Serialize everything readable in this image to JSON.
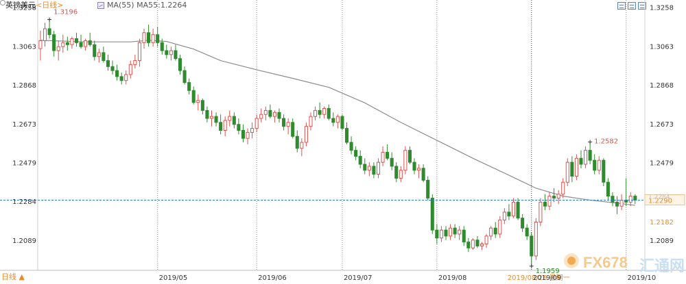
{
  "header": {
    "symbol": "英镑美元",
    "period": "<日线>",
    "ma_label": "MA(55)",
    "ma_value": "MA55:1.2264"
  },
  "period_tab": "日线 ▲",
  "watermark": {
    "fx": "FX678",
    "cn": "汇通网"
  },
  "colors": {
    "up": "#d9544f",
    "down": "#2e8b2e",
    "ma": "#8c8c8c",
    "current": "#2a7fd4",
    "date_hl": "#e98b2c"
  },
  "chart_data": {
    "type": "candlestick",
    "instrument": "英镑美元",
    "period": "日线",
    "y_ticks": [
      1.3258,
      1.3063,
      1.2868,
      1.2673,
      1.2479,
      1.2284,
      1.2089
    ],
    "ylim": [
      1.1938,
      1.3294
    ],
    "x_labels": [
      "2019/05",
      "2019/06",
      "2019/07",
      "2019/08",
      "2019/09",
      "2019/10"
    ],
    "x_label_candle_index": [
      26,
      48,
      67,
      88,
      109,
      130
    ],
    "annotations": {
      "high": "1.3196",
      "low": "1.1959",
      "recent_high": "1.2582",
      "left_marker": "1.2182"
    },
    "current_price": 1.229,
    "current_price_label": "1.2290",
    "right_price_hidden": "1.2284",
    "crosshair_date_label": "2019/08/26 星期一",
    "candles": [
      [
        1.305,
        1.314,
        1.299,
        1.309
      ],
      [
        1.309,
        1.318,
        1.306,
        1.315
      ],
      [
        1.315,
        1.3196,
        1.31,
        1.312
      ],
      [
        1.312,
        1.314,
        1.301,
        1.304
      ],
      [
        1.304,
        1.309,
        1.299,
        1.306
      ],
      [
        1.306,
        1.312,
        1.303,
        1.308
      ],
      [
        1.308,
        1.311,
        1.304,
        1.307
      ],
      [
        1.307,
        1.311,
        1.305,
        1.31
      ],
      [
        1.31,
        1.313,
        1.306,
        1.308
      ],
      [
        1.308,
        1.312,
        1.305,
        1.306
      ],
      [
        1.306,
        1.31,
        1.304,
        1.309
      ],
      [
        1.309,
        1.313,
        1.306,
        1.307
      ],
      [
        1.307,
        1.309,
        1.299,
        1.301
      ],
      [
        1.301,
        1.305,
        1.298,
        1.303
      ],
      [
        1.303,
        1.306,
        1.298,
        1.299
      ],
      [
        1.299,
        1.302,
        1.294,
        1.296
      ],
      [
        1.296,
        1.299,
        1.292,
        1.294
      ],
      [
        1.294,
        1.297,
        1.289,
        1.291
      ],
      [
        1.291,
        1.293,
        1.287,
        1.289
      ],
      [
        1.289,
        1.294,
        1.287,
        1.292
      ],
      [
        1.292,
        1.299,
        1.29,
        1.297
      ],
      [
        1.297,
        1.302,
        1.295,
        1.299
      ],
      [
        1.299,
        1.31,
        1.296,
        1.308
      ],
      [
        1.308,
        1.315,
        1.305,
        1.313
      ],
      [
        1.313,
        1.317,
        1.306,
        1.308
      ],
      [
        1.308,
        1.315,
        1.306,
        1.312
      ],
      [
        1.312,
        1.316,
        1.306,
        1.308
      ],
      [
        1.308,
        1.31,
        1.302,
        1.304
      ],
      [
        1.304,
        1.307,
        1.3,
        1.302
      ],
      [
        1.302,
        1.306,
        1.299,
        1.304
      ],
      [
        1.304,
        1.307,
        1.299,
        1.3
      ],
      [
        1.3,
        1.302,
        1.292,
        1.294
      ],
      [
        1.294,
        1.296,
        1.287,
        1.288
      ],
      [
        1.288,
        1.29,
        1.282,
        1.284
      ],
      [
        1.284,
        1.286,
        1.277,
        1.278
      ],
      [
        1.278,
        1.282,
        1.274,
        1.279
      ],
      [
        1.279,
        1.28,
        1.272,
        1.274
      ],
      [
        1.274,
        1.276,
        1.268,
        1.27
      ],
      [
        1.27,
        1.274,
        1.266,
        1.271
      ],
      [
        1.271,
        1.273,
        1.266,
        1.268
      ],
      [
        1.268,
        1.272,
        1.262,
        1.264
      ],
      [
        1.264,
        1.271,
        1.261,
        1.269
      ],
      [
        1.269,
        1.274,
        1.266,
        1.271
      ],
      [
        1.271,
        1.273,
        1.265,
        1.267
      ],
      [
        1.267,
        1.27,
        1.262,
        1.264
      ],
      [
        1.264,
        1.267,
        1.258,
        1.26
      ],
      [
        1.26,
        1.265,
        1.257,
        1.263
      ],
      [
        1.263,
        1.268,
        1.26,
        1.265
      ],
      [
        1.265,
        1.272,
        1.263,
        1.27
      ],
      [
        1.27,
        1.275,
        1.268,
        1.272
      ],
      [
        1.272,
        1.276,
        1.269,
        1.274
      ],
      [
        1.274,
        1.277,
        1.27,
        1.271
      ],
      [
        1.271,
        1.274,
        1.268,
        1.273
      ],
      [
        1.273,
        1.275,
        1.268,
        1.27
      ],
      [
        1.27,
        1.272,
        1.264,
        1.266
      ],
      [
        1.266,
        1.27,
        1.262,
        1.268
      ],
      [
        1.268,
        1.27,
        1.26,
        1.261
      ],
      [
        1.261,
        1.264,
        1.253,
        1.255
      ],
      [
        1.255,
        1.26,
        1.251,
        1.258
      ],
      [
        1.258,
        1.268,
        1.256,
        1.266
      ],
      [
        1.266,
        1.273,
        1.264,
        1.271
      ],
      [
        1.271,
        1.276,
        1.269,
        1.274
      ],
      [
        1.274,
        1.278,
        1.27,
        1.272
      ],
      [
        1.272,
        1.276,
        1.27,
        1.275
      ],
      [
        1.275,
        1.277,
        1.269,
        1.27
      ],
      [
        1.27,
        1.273,
        1.266,
        1.268
      ],
      [
        1.268,
        1.272,
        1.265,
        1.271
      ],
      [
        1.271,
        1.272,
        1.264,
        1.265
      ],
      [
        1.265,
        1.268,
        1.257,
        1.258
      ],
      [
        1.258,
        1.261,
        1.252,
        1.254
      ],
      [
        1.254,
        1.256,
        1.249,
        1.251
      ],
      [
        1.251,
        1.254,
        1.245,
        1.247
      ],
      [
        1.247,
        1.25,
        1.242,
        1.244
      ],
      [
        1.244,
        1.248,
        1.241,
        1.246
      ],
      [
        1.246,
        1.248,
        1.24,
        1.242
      ],
      [
        1.242,
        1.25,
        1.24,
        1.248
      ],
      [
        1.248,
        1.256,
        1.246,
        1.253
      ],
      [
        1.253,
        1.257,
        1.249,
        1.25
      ],
      [
        1.25,
        1.253,
        1.244,
        1.246
      ],
      [
        1.246,
        1.248,
        1.238,
        1.24
      ],
      [
        1.24,
        1.246,
        1.238,
        1.244
      ],
      [
        1.244,
        1.256,
        1.242,
        1.254
      ],
      [
        1.254,
        1.256,
        1.247,
        1.248
      ],
      [
        1.248,
        1.25,
        1.242,
        1.244
      ],
      [
        1.244,
        1.247,
        1.24,
        1.245
      ],
      [
        1.245,
        1.247,
        1.238,
        1.239
      ],
      [
        1.239,
        1.241,
        1.229,
        1.23
      ],
      [
        1.23,
        1.232,
        1.212,
        1.214
      ],
      [
        1.214,
        1.217,
        1.207,
        1.21
      ],
      [
        1.21,
        1.216,
        1.208,
        1.214
      ],
      [
        1.214,
        1.216,
        1.209,
        1.211
      ],
      [
        1.211,
        1.217,
        1.209,
        1.215
      ],
      [
        1.215,
        1.217,
        1.21,
        1.212
      ],
      [
        1.212,
        1.216,
        1.209,
        1.214
      ],
      [
        1.214,
        1.216,
        1.206,
        1.208
      ],
      [
        1.208,
        1.21,
        1.203,
        1.205
      ],
      [
        1.205,
        1.21,
        1.204,
        1.209
      ],
      [
        1.209,
        1.211,
        1.205,
        1.206
      ],
      [
        1.206,
        1.208,
        1.204,
        1.207
      ],
      [
        1.207,
        1.212,
        1.205,
        1.211
      ],
      [
        1.211,
        1.216,
        1.209,
        1.215
      ],
      [
        1.215,
        1.218,
        1.21,
        1.212
      ],
      [
        1.212,
        1.221,
        1.21,
        1.219
      ],
      [
        1.219,
        1.225,
        1.217,
        1.223
      ],
      [
        1.223,
        1.227,
        1.219,
        1.221
      ],
      [
        1.221,
        1.23,
        1.22,
        1.228
      ],
      [
        1.228,
        1.23,
        1.219,
        1.22
      ],
      [
        1.22,
        1.222,
        1.213,
        1.215
      ],
      [
        1.215,
        1.217,
        1.209,
        1.211
      ],
      [
        1.211,
        1.213,
        1.1959,
        1.201
      ],
      [
        1.201,
        1.22,
        1.199,
        1.218
      ],
      [
        1.218,
        1.23,
        1.216,
        1.228
      ],
      [
        1.228,
        1.232,
        1.224,
        1.226
      ],
      [
        1.226,
        1.233,
        1.224,
        1.231
      ],
      [
        1.231,
        1.235,
        1.228,
        1.23
      ],
      [
        1.23,
        1.234,
        1.227,
        1.232
      ],
      [
        1.232,
        1.24,
        1.23,
        1.238
      ],
      [
        1.238,
        1.25,
        1.236,
        1.248
      ],
      [
        1.248,
        1.251,
        1.238,
        1.241
      ],
      [
        1.241,
        1.252,
        1.239,
        1.25
      ],
      [
        1.25,
        1.254,
        1.245,
        1.247
      ],
      [
        1.247,
        1.256,
        1.245,
        1.254
      ],
      [
        1.254,
        1.2582,
        1.247,
        1.249
      ],
      [
        1.249,
        1.252,
        1.242,
        1.244
      ],
      [
        1.244,
        1.251,
        1.242,
        1.249
      ],
      [
        1.249,
        1.25,
        1.236,
        1.238
      ],
      [
        1.238,
        1.24,
        1.229,
        1.231
      ],
      [
        1.231,
        1.233,
        1.226,
        1.228
      ],
      [
        1.228,
        1.231,
        1.222,
        1.226
      ],
      [
        1.226,
        1.232,
        1.224,
        1.229
      ],
      [
        1.229,
        1.24,
        1.226,
        1.228
      ],
      [
        1.228,
        1.233,
        1.226,
        1.231
      ],
      [
        1.231,
        1.232,
        1.227,
        1.229
      ]
    ],
    "ma55": [
      [
        0,
        1.3092
      ],
      [
        10,
        1.3084
      ],
      [
        20,
        1.3084
      ],
      [
        24,
        1.3092
      ],
      [
        28,
        1.3086
      ],
      [
        34,
        1.3048
      ],
      [
        40,
        1.299
      ],
      [
        48,
        1.2944
      ],
      [
        56,
        1.2901
      ],
      [
        64,
        1.2856
      ],
      [
        72,
        1.2778
      ],
      [
        80,
        1.268
      ],
      [
        88,
        1.259
      ],
      [
        96,
        1.25
      ],
      [
        104,
        1.2415
      ],
      [
        110,
        1.235
      ],
      [
        116,
        1.231
      ],
      [
        122,
        1.229
      ],
      [
        128,
        1.2275
      ],
      [
        132,
        1.2264
      ]
    ]
  }
}
